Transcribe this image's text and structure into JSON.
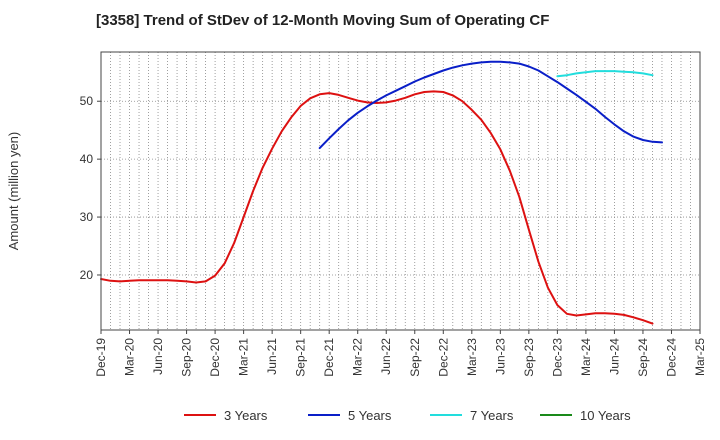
{
  "chart_data": {
    "type": "line",
    "title": "[3358]  Trend of StDev of 12-Month Moving Sum of Operating CF",
    "ylabel": "Amount (million yen)",
    "xlabel": "",
    "x_ticks": [
      "Dec-19",
      "Mar-20",
      "Jun-20",
      "Sep-20",
      "Dec-20",
      "Mar-21",
      "Jun-21",
      "Sep-21",
      "Dec-21",
      "Mar-22",
      "Jun-22",
      "Sep-22",
      "Dec-22",
      "Mar-23",
      "Jun-23",
      "Sep-23",
      "Dec-23",
      "Mar-24",
      "Jun-24",
      "Sep-24",
      "Dec-24",
      "Mar-25"
    ],
    "x_range": [
      "2019-12",
      "2025-03"
    ],
    "y_ticks": [
      20,
      30,
      40,
      50
    ],
    "ylim": [
      10.5,
      58.5
    ],
    "grid": true,
    "legend_position": "bottom",
    "series": [
      {
        "name": "3 Years",
        "color": "#dd1111",
        "points": [
          [
            "2019-12",
            19.3
          ],
          [
            "2020-01",
            19.0
          ],
          [
            "2020-02",
            18.9
          ],
          [
            "2020-03",
            19.0
          ],
          [
            "2020-04",
            19.1
          ],
          [
            "2020-05",
            19.1
          ],
          [
            "2020-06",
            19.1
          ],
          [
            "2020-07",
            19.1
          ],
          [
            "2020-08",
            19.0
          ],
          [
            "2020-09",
            18.9
          ],
          [
            "2020-10",
            18.7
          ],
          [
            "2020-11",
            18.9
          ],
          [
            "2020-12",
            19.9
          ],
          [
            "2021-01",
            22.0
          ],
          [
            "2021-02",
            25.5
          ],
          [
            "2021-03",
            30.0
          ],
          [
            "2021-04",
            34.5
          ],
          [
            "2021-05",
            38.5
          ],
          [
            "2021-06",
            41.8
          ],
          [
            "2021-07",
            44.8
          ],
          [
            "2021-08",
            47.2
          ],
          [
            "2021-09",
            49.2
          ],
          [
            "2021-10",
            50.5
          ],
          [
            "2021-11",
            51.2
          ],
          [
            "2021-12",
            51.4
          ],
          [
            "2022-01",
            51.1
          ],
          [
            "2022-02",
            50.6
          ],
          [
            "2022-03",
            50.1
          ],
          [
            "2022-04",
            49.8
          ],
          [
            "2022-05",
            49.7
          ],
          [
            "2022-06",
            49.8
          ],
          [
            "2022-07",
            50.1
          ],
          [
            "2022-08",
            50.6
          ],
          [
            "2022-09",
            51.2
          ],
          [
            "2022-10",
            51.6
          ],
          [
            "2022-11",
            51.7
          ],
          [
            "2022-12",
            51.6
          ],
          [
            "2023-01",
            51.0
          ],
          [
            "2023-02",
            50.0
          ],
          [
            "2023-03",
            48.5
          ],
          [
            "2023-04",
            46.8
          ],
          [
            "2023-05",
            44.5
          ],
          [
            "2023-06",
            41.7
          ],
          [
            "2023-07",
            38.0
          ],
          [
            "2023-08",
            33.5
          ],
          [
            "2023-09",
            27.8
          ],
          [
            "2023-10",
            22.3
          ],
          [
            "2023-11",
            17.8
          ],
          [
            "2023-12",
            14.8
          ],
          [
            "2024-01",
            13.3
          ],
          [
            "2024-02",
            13.0
          ],
          [
            "2024-03",
            13.2
          ],
          [
            "2024-04",
            13.4
          ],
          [
            "2024-05",
            13.4
          ],
          [
            "2024-06",
            13.3
          ],
          [
            "2024-07",
            13.1
          ],
          [
            "2024-08",
            12.7
          ],
          [
            "2024-09",
            12.2
          ],
          [
            "2024-10",
            11.6
          ]
        ]
      },
      {
        "name": "5 Years",
        "color": "#0a1fc8",
        "points": [
          [
            "2021-11",
            41.9
          ],
          [
            "2021-12",
            43.6
          ],
          [
            "2022-01",
            45.2
          ],
          [
            "2022-02",
            46.7
          ],
          [
            "2022-03",
            48.0
          ],
          [
            "2022-04",
            49.1
          ],
          [
            "2022-05",
            50.1
          ],
          [
            "2022-06",
            51.0
          ],
          [
            "2022-07",
            51.8
          ],
          [
            "2022-08",
            52.6
          ],
          [
            "2022-09",
            53.4
          ],
          [
            "2022-10",
            54.1
          ],
          [
            "2022-11",
            54.7
          ],
          [
            "2022-12",
            55.3
          ],
          [
            "2023-01",
            55.8
          ],
          [
            "2023-02",
            56.2
          ],
          [
            "2023-03",
            56.5
          ],
          [
            "2023-04",
            56.7
          ],
          [
            "2023-05",
            56.8
          ],
          [
            "2023-06",
            56.8
          ],
          [
            "2023-07",
            56.7
          ],
          [
            "2023-08",
            56.5
          ],
          [
            "2023-09",
            56.0
          ],
          [
            "2023-10",
            55.3
          ],
          [
            "2023-11",
            54.3
          ],
          [
            "2023-12",
            53.3
          ],
          [
            "2024-01",
            52.2
          ],
          [
            "2024-02",
            51.1
          ],
          [
            "2024-03",
            49.9
          ],
          [
            "2024-04",
            48.7
          ],
          [
            "2024-05",
            47.3
          ],
          [
            "2024-06",
            46.0
          ],
          [
            "2024-07",
            44.8
          ],
          [
            "2024-08",
            43.9
          ],
          [
            "2024-09",
            43.3
          ],
          [
            "2024-10",
            43.0
          ],
          [
            "2024-11",
            42.9
          ]
        ]
      },
      {
        "name": "7 Years",
        "color": "#22dddd",
        "points": [
          [
            "2023-12",
            54.3
          ],
          [
            "2024-01",
            54.5
          ],
          [
            "2024-02",
            54.8
          ],
          [
            "2024-03",
            55.0
          ],
          [
            "2024-04",
            55.2
          ],
          [
            "2024-05",
            55.2
          ],
          [
            "2024-06",
            55.2
          ],
          [
            "2024-07",
            55.1
          ],
          [
            "2024-08",
            55.0
          ],
          [
            "2024-09",
            54.8
          ],
          [
            "2024-10",
            54.5
          ]
        ]
      },
      {
        "name": "10 Years",
        "color": "#1a8a1a",
        "points": []
      }
    ]
  }
}
